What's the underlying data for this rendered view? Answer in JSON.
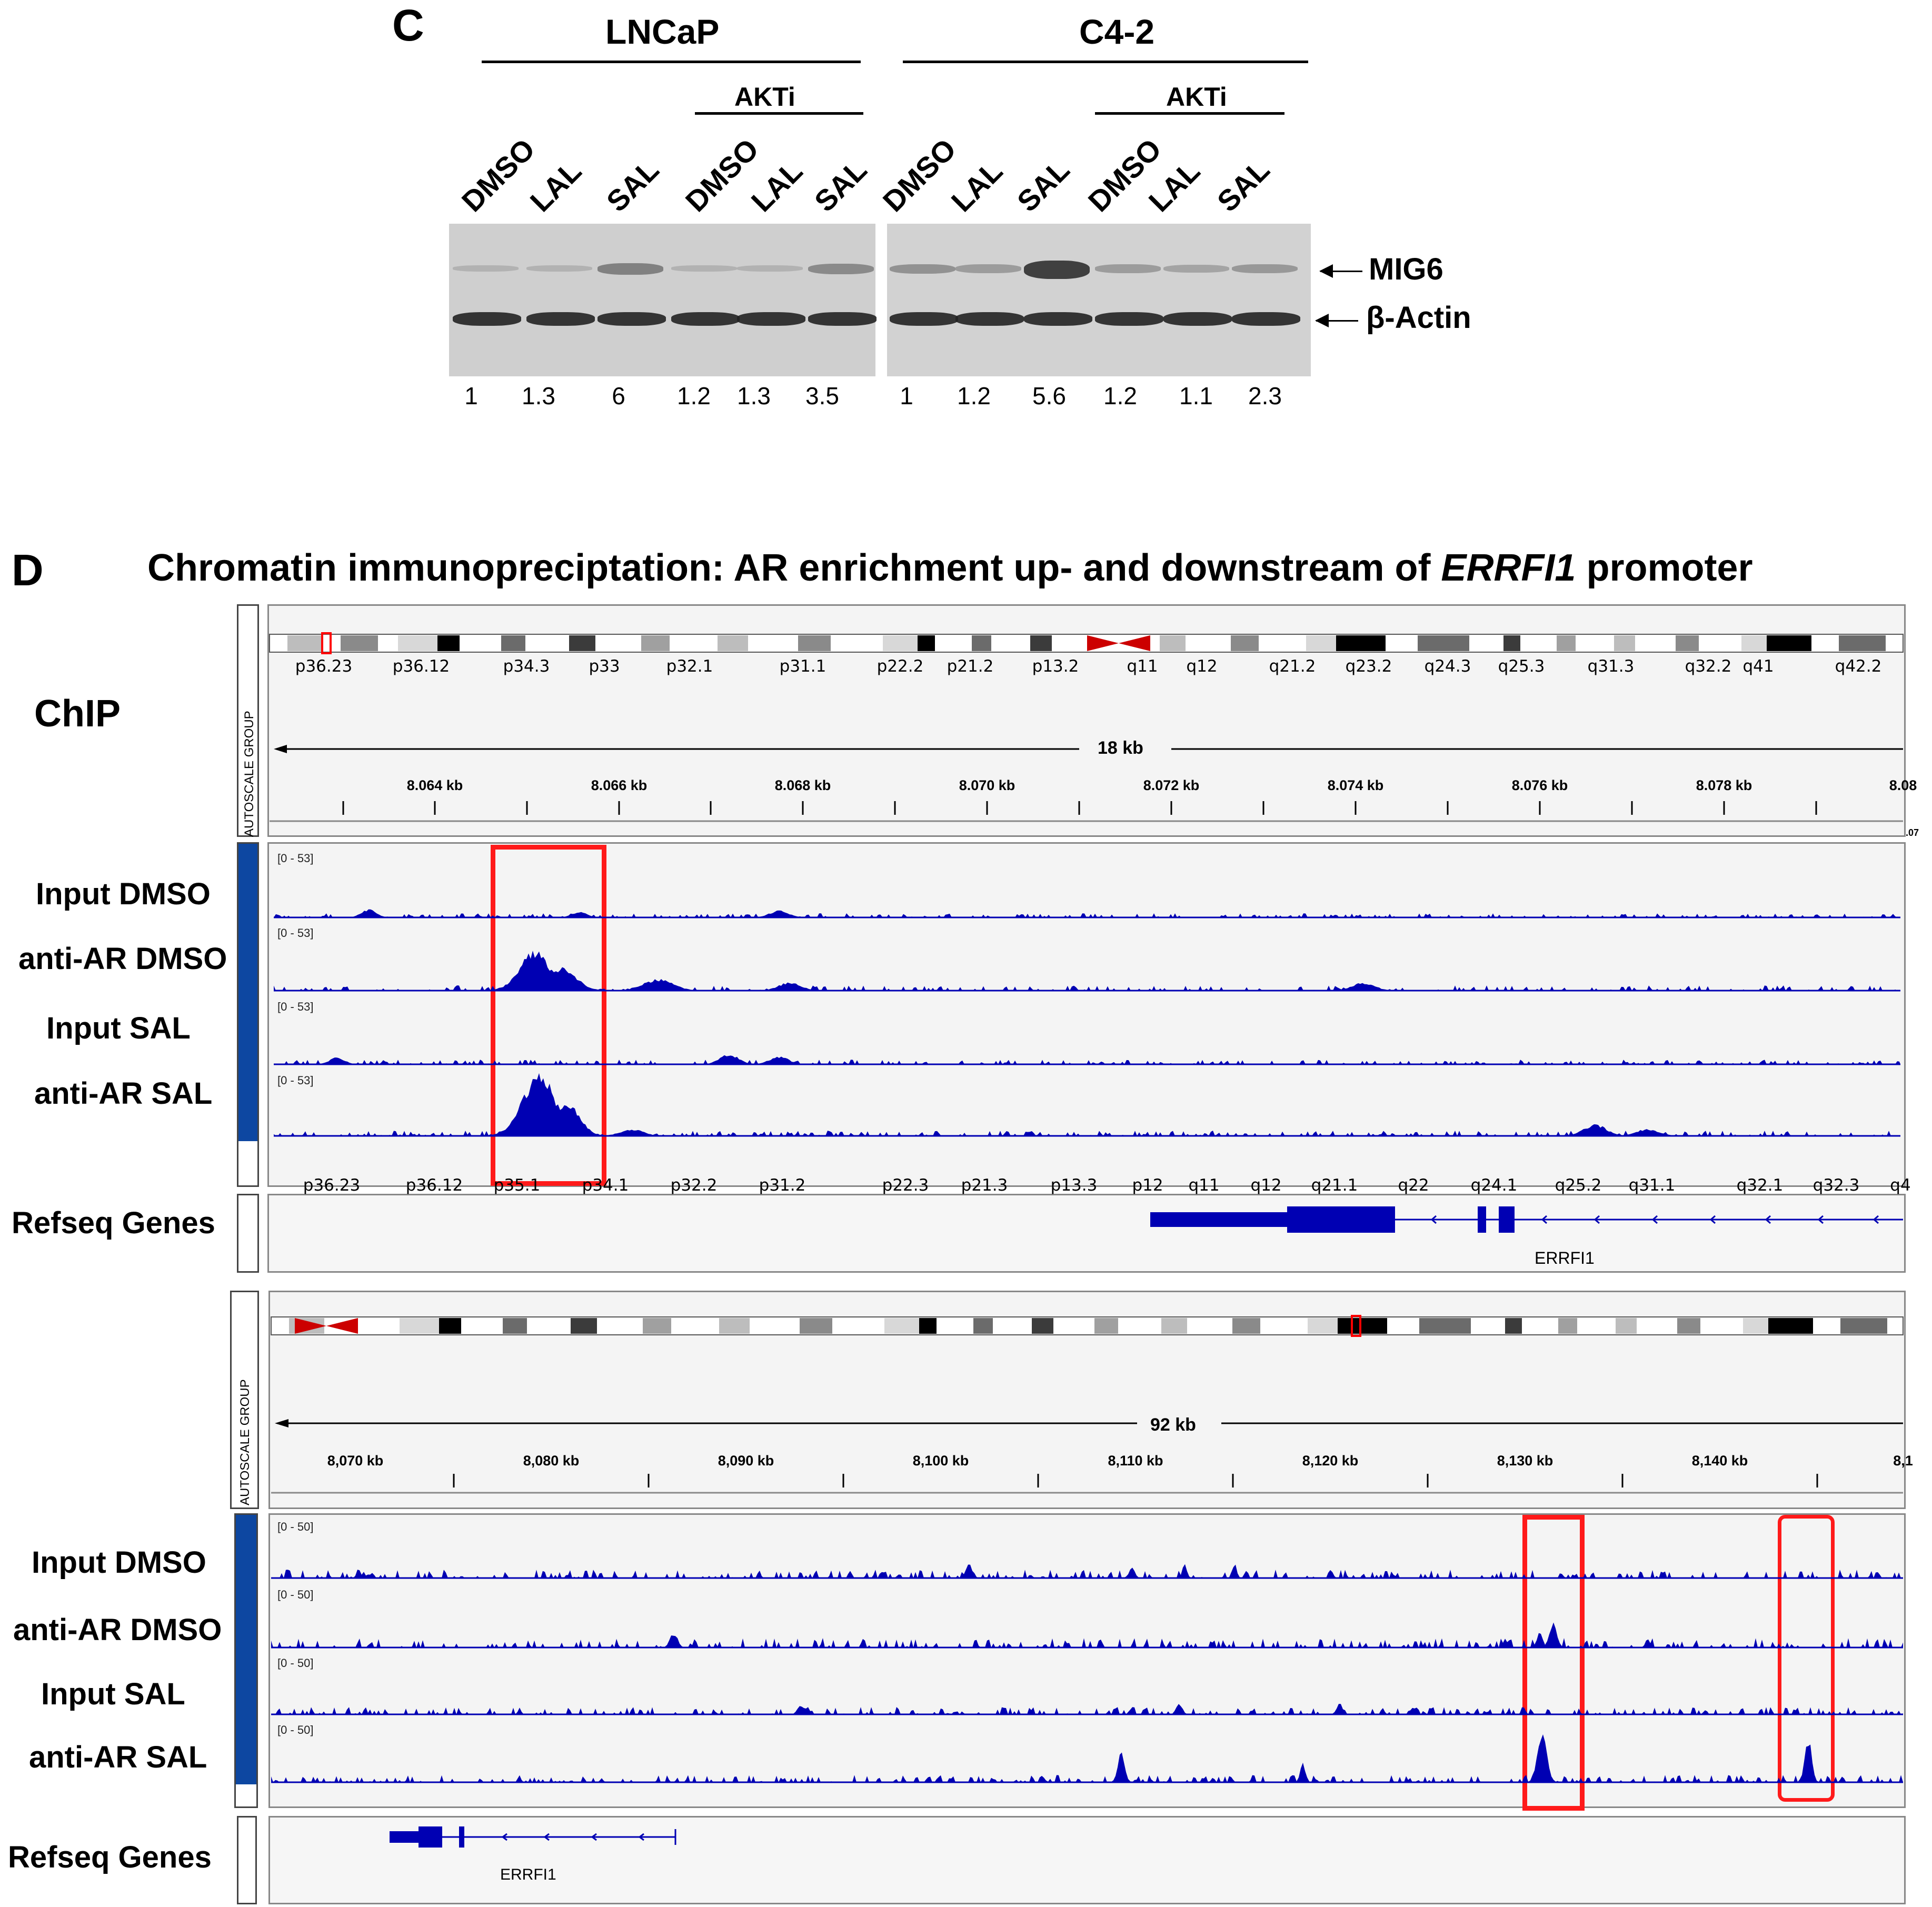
{
  "panel_c": {
    "letter": "C",
    "cell_lines": [
      "LNCaP",
      "C4-2"
    ],
    "treatment_group": "AKTi",
    "lanes": [
      "DMSO",
      "LAL",
      "SAL",
      "DMSO",
      "LAL",
      "SAL",
      "DMSO",
      "LAL",
      "SAL",
      "DMSO",
      "LAL",
      "SAL"
    ],
    "targets": [
      "MIG6",
      "β-Actin"
    ],
    "quantification": [
      "1",
      "1.3",
      "6",
      "1.2",
      "1.3",
      "3.5",
      "1",
      "1.2",
      "5.6",
      "1.2",
      "1.1",
      "2.3"
    ],
    "mig6_relative": [
      0.05,
      0.05,
      0.35,
      0.05,
      0.05,
      0.3,
      0.25,
      0.2,
      0.75,
      0.2,
      0.15,
      0.22
    ]
  },
  "panel_d": {
    "letter": "D",
    "title_prefix": "Chromatin immunopreciptation: AR enrichment up- and downstream of ",
    "title_gene": "ERRFI1",
    "title_suffix": " promoter",
    "chip_label": "ChIP",
    "autoscale_label": "AUTOSCALE GROUP",
    "refseq_label": "Refseq Genes",
    "gene_name": "ERRFI1",
    "tracks": [
      "Input DMSO",
      "anti-AR DMSO",
      "Input SAL",
      "anti-AR SAL"
    ],
    "view1": {
      "cytobands": [
        "p36.23",
        "p36.12",
        "p34.3",
        "p33",
        "p32.1",
        "p31.1",
        "p22.2",
        "p21.2",
        "p13.2",
        "q11",
        "q12",
        "q21.2",
        "q23.2",
        "q24.3",
        "q25.3",
        "q31.3",
        "q32.2",
        "q41",
        "q42.2"
      ],
      "span": "18 kb",
      "ticks": [
        "8.064 kb",
        "8.066 kb",
        "8.068 kb",
        "8.070 kb",
        "8.072 kb",
        "8.074 kb",
        "8.076 kb",
        "8.078 kb",
        "8.08"
      ],
      "range": "[0 - 53]",
      "edge_text": ".07"
    },
    "view2": {
      "cytobands": [
        "p36.23",
        "p36.12",
        "p35.1",
        "p34.1",
        "p32.2",
        "p31.2",
        "p22.3",
        "p21.3",
        "p13.3",
        "p12",
        "q11",
        "q12",
        "q21.1",
        "q22",
        "q24.1",
        "q25.2",
        "q31.1",
        "q32.1",
        "q32.3",
        "q4"
      ],
      "span": "92 kb",
      "ticks": [
        "8,070 kb",
        "8,080 kb",
        "8,090 kb",
        "8,100 kb",
        "8,110 kb",
        "8,120 kb",
        "8,130 kb",
        "8,140 kb",
        "8,1"
      ],
      "range": "[0 - 50]"
    },
    "colors": {
      "signal": "#0000b3",
      "highlight": "#ff1a1a",
      "sidebar": "#0d47a1"
    }
  }
}
